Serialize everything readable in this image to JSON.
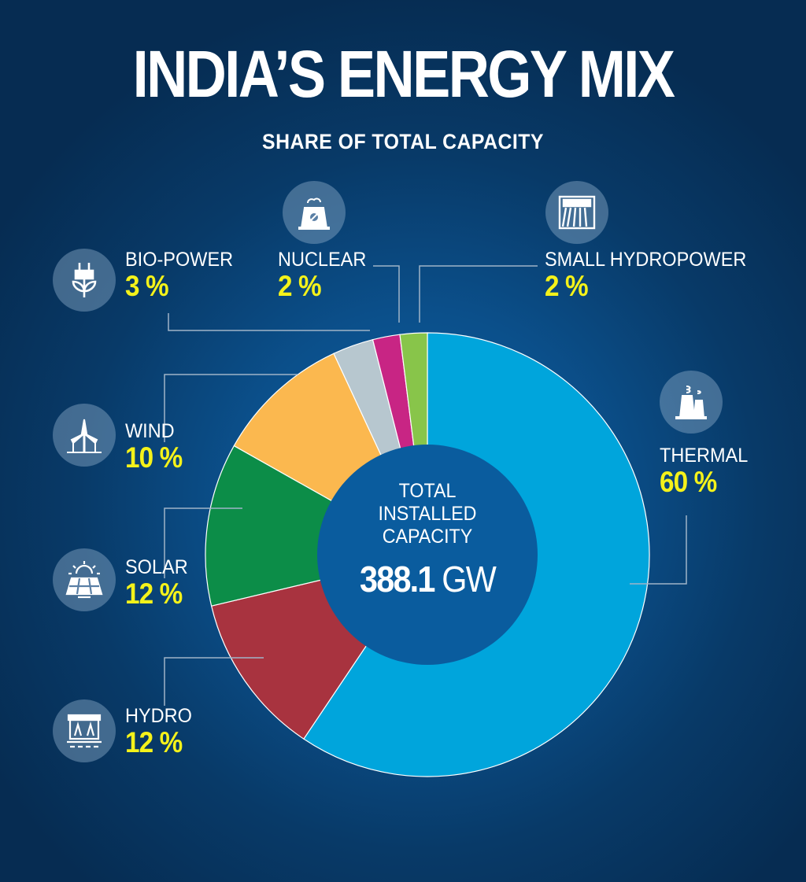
{
  "title": "INDIA’S ENERGY MIX",
  "subtitle": "SHARE OF TOTAL CAPACITY",
  "center": {
    "line1": "TOTAL",
    "line2": "INSTALLED",
    "line3": "CAPACITY",
    "value": "388.1",
    "unit": "GW"
  },
  "chart_data": {
    "type": "pie",
    "title": "INDIA’S ENERGY MIX",
    "subtitle": "SHARE OF TOTAL CAPACITY",
    "donut": true,
    "start": "top",
    "direction": "clockwise",
    "categories": [
      "THERMAL",
      "HYDRO",
      "SOLAR",
      "WIND",
      "BIO-POWER",
      "NUCLEAR",
      "SMALL HYDROPOWER"
    ],
    "values": [
      60,
      12,
      12,
      10,
      3,
      2,
      2
    ],
    "labels": [
      "60 %",
      "12 %",
      "12 %",
      "10 %",
      "3 %",
      "2 %",
      "2 %"
    ],
    "colors": [
      "#00a5dc",
      "#a8333f",
      "#0c8d48",
      "#fbb84f",
      "#b7c7cf",
      "#c82584",
      "#88c54a"
    ],
    "icons": [
      "thermal-plant-icon",
      "hydro-dam-icon",
      "solar-panel-icon",
      "wind-turbine-icon",
      "bio-power-plug-icon",
      "nuclear-plant-icon",
      "small-hydropower-icon"
    ]
  }
}
